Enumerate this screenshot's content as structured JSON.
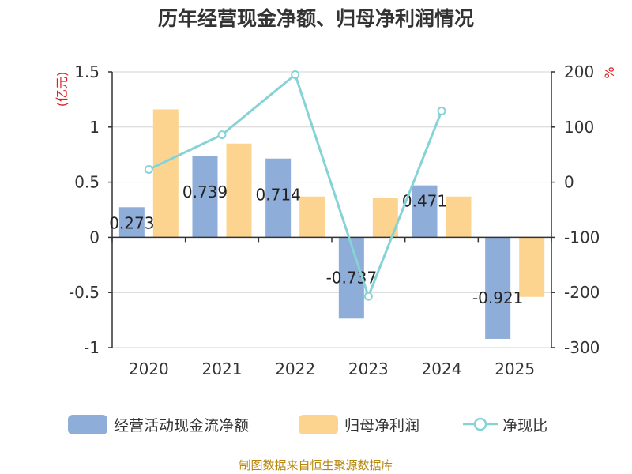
{
  "chart_data": {
    "type": "bar",
    "title": "历年经营现金净额、归母净利润情况",
    "categories": [
      "2020",
      "2021",
      "2022",
      "2023",
      "2024",
      "2025"
    ],
    "series": [
      {
        "name": "经营活动现金流净额",
        "kind": "bar",
        "axis": "left",
        "color": "#8eadd9",
        "values": [
          0.273,
          0.739,
          0.714,
          -0.737,
          0.471,
          -0.921
        ],
        "labels": [
          "0.273",
          "0.739",
          "0.714",
          "-0.737",
          "0.471",
          "-0.921"
        ]
      },
      {
        "name": "归母净利润",
        "kind": "bar",
        "axis": "left",
        "color": "#fdd48f",
        "values": [
          1.16,
          0.85,
          0.37,
          0.36,
          0.37,
          -0.54
        ]
      },
      {
        "name": "净现比",
        "kind": "line",
        "axis": "right",
        "color": "#86d3d6",
        "values": [
          23,
          86,
          195,
          -207,
          129,
          null
        ]
      }
    ],
    "y_left": {
      "unit": "(亿元)",
      "ticks": [
        1.5,
        1,
        0.5,
        0,
        -0.5,
        -1
      ],
      "tick_labels": [
        "1.5",
        "1",
        "0.5",
        "0",
        "-0.5",
        "-1"
      ],
      "ylim": [
        -1,
        1.5
      ]
    },
    "y_right": {
      "unit": "%",
      "ticks": [
        200,
        100,
        0,
        -100,
        -200,
        -300
      ],
      "tick_labels": [
        "200",
        "100",
        "0",
        "-100",
        "-200",
        "-300"
      ],
      "ylim": [
        -300,
        200
      ]
    },
    "grid": true,
    "legend_position": "bottom"
  },
  "source": "制图数据来自恒生聚源数据库"
}
